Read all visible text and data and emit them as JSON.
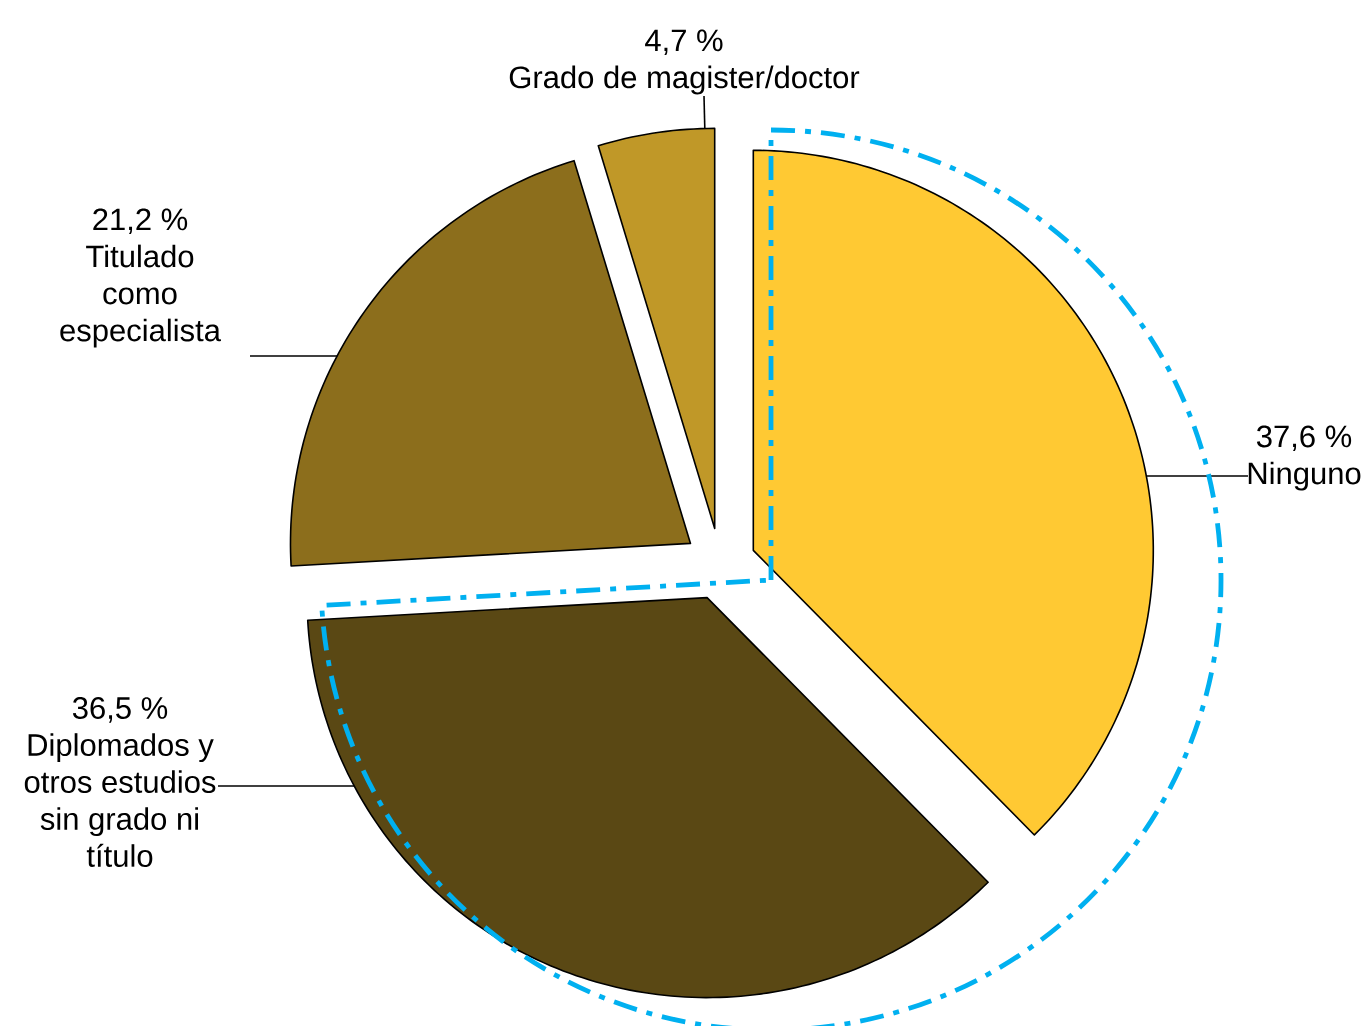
{
  "chart_data": {
    "type": "pie",
    "categories": [
      "Ninguno",
      "Diplomados y otros estudios sin grado ni título",
      "Titulado como especialista",
      "Grado de magister/doctor"
    ],
    "values": [
      37.6,
      36.5,
      21.2,
      4.7
    ],
    "value_labels": [
      "37,6 %",
      "36,5 %",
      "21,2 %",
      "4,7 %"
    ],
    "colors": [
      "#ffc933",
      "#5a4814",
      "#8c6e1c",
      "#c09828"
    ]
  }
}
